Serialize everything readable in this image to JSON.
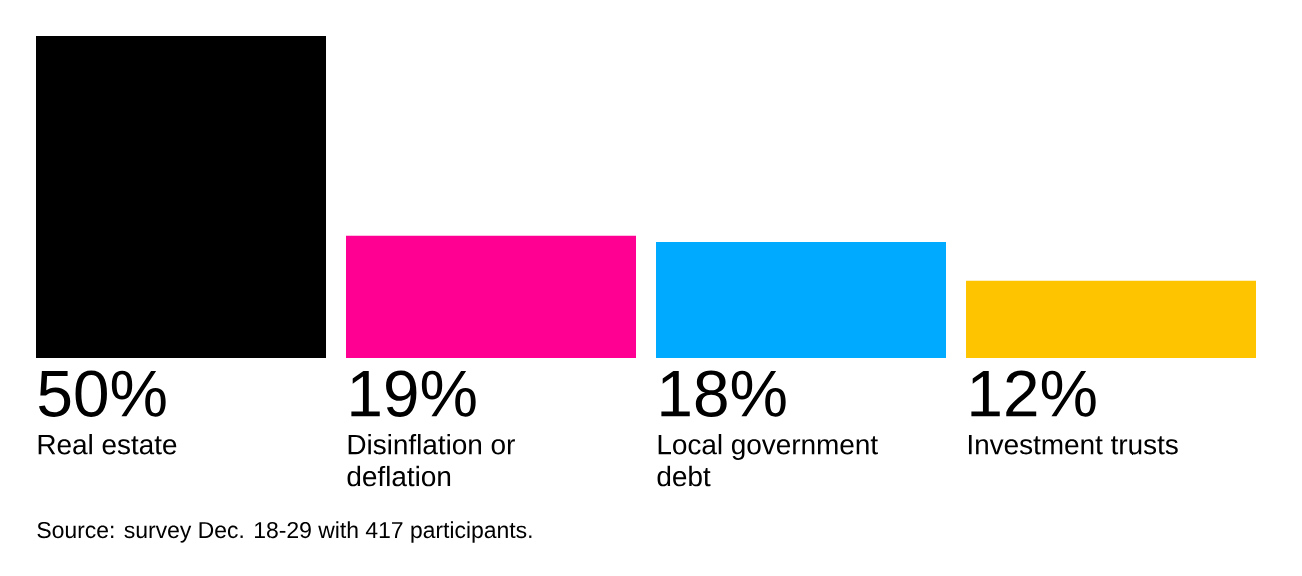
{
  "chart_data": {
    "type": "bar",
    "categories": [
      "Real estate",
      "Disinflation or deflation",
      "Local government debt",
      "Investment trusts"
    ],
    "values": [
      50,
      19,
      18,
      12
    ],
    "colors": [
      "#000000",
      "#ff0092",
      "#00aaff",
      "#ffc400"
    ],
    "value_labels": [
      "50%",
      "19%",
      "18%",
      "12%"
    ],
    "annotations": [
      "Source: survey Dec. 18-29 with 417 participants."
    ]
  }
}
